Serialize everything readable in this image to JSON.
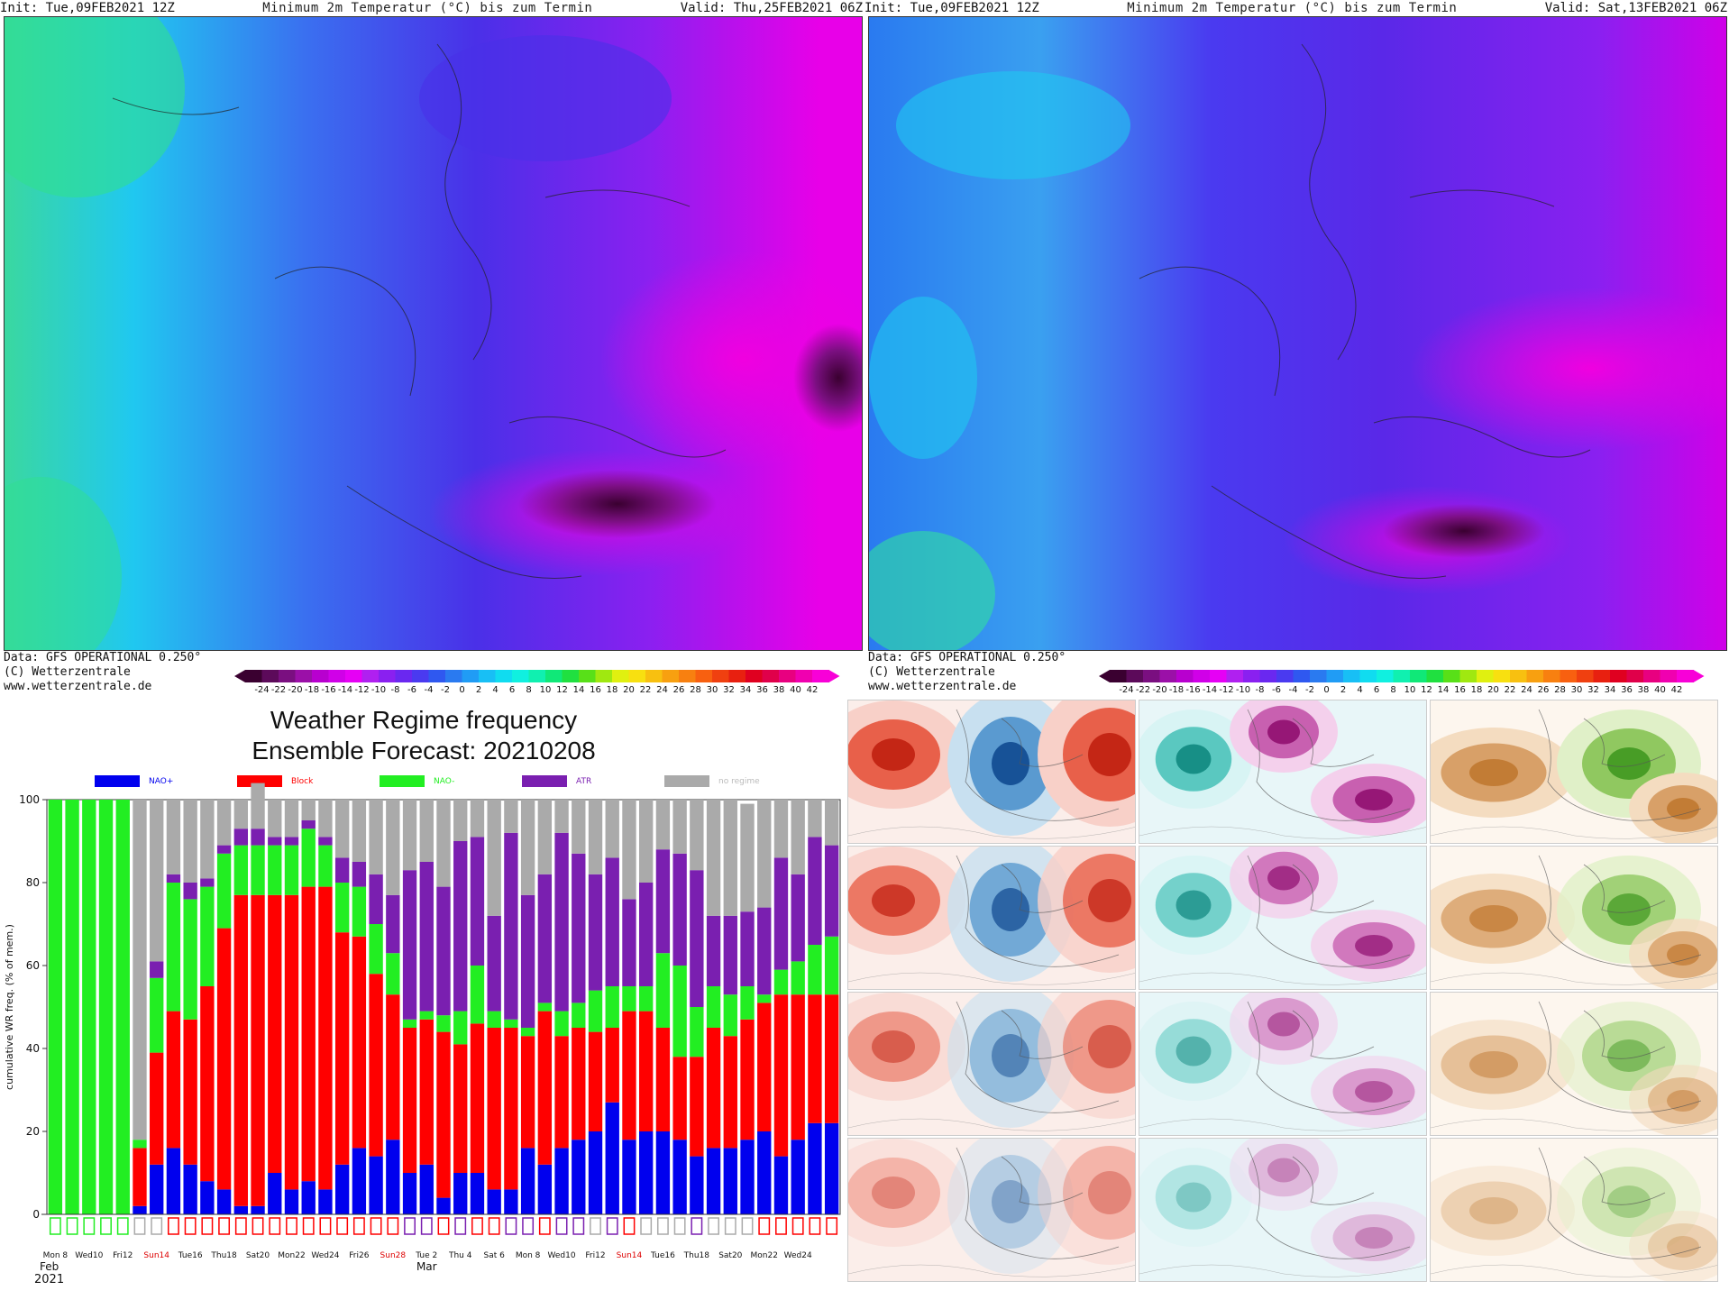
{
  "top_maps": [
    {
      "init": "Init: Tue,09FEB2021 12Z",
      "title": "Minimum 2m Temperatur (°C) bis zum Termin",
      "valid": "Valid: Thu,25FEB2021 06Z",
      "data_source": "Data: GFS OPERATIONAL 0.250°",
      "copyright": "(C) Wetterzentrale",
      "url": "www.wetterzentrale.de"
    },
    {
      "init": "Init: Tue,09FEB2021 12Z",
      "title": "Minimum 2m Temperatur (°C) bis zum Termin",
      "valid": "Valid: Sat,13FEB2021 06Z",
      "data_source": "Data: GFS OPERATIONAL 0.250°",
      "copyright": "(C) Wetterzentrale",
      "url": "www.wetterzentrale.de"
    }
  ],
  "colorbar": {
    "ticks": [
      "-24",
      "-22",
      "-20",
      "-18",
      "-16",
      "-14",
      "-12",
      "-10",
      "-8",
      "-6",
      "-4",
      "-2",
      "0",
      "2",
      "4",
      "6",
      "8",
      "10",
      "12",
      "14",
      "16",
      "18",
      "20",
      "22",
      "24",
      "26",
      "28",
      "30",
      "32",
      "34",
      "36",
      "38",
      "40",
      "42"
    ],
    "colors": [
      "#3a0030",
      "#5c0a5a",
      "#7a0f80",
      "#9b10a8",
      "#b800cf",
      "#d000e8",
      "#e600f5",
      "#b020f0",
      "#8a20f0",
      "#6a28f0",
      "#4a3af0",
      "#2f58f0",
      "#2a7af0",
      "#209cf5",
      "#18bff5",
      "#10dcf0",
      "#10f0e0",
      "#10f0b0",
      "#10e878",
      "#20e040",
      "#58e018",
      "#a0e810",
      "#e0f010",
      "#f8e010",
      "#f8c010",
      "#f8a010",
      "#f88010",
      "#f86010",
      "#f04010",
      "#e82010",
      "#e00020",
      "#e0004a",
      "#e80080",
      "#f000b0",
      "#f800d8"
    ]
  },
  "chart": {
    "title_line1": "Weather Regime frequency",
    "title_line2": "Ensemble Forecast: 20210208",
    "ylabel": "cumulative WR freq. (% of mem.)",
    "yticks": [
      "0",
      "20",
      "40",
      "60",
      "80",
      "100"
    ],
    "legend": [
      {
        "label": "NAO+",
        "color": "#0000ee"
      },
      {
        "label": "Block",
        "color": "#ff0000"
      },
      {
        "label": "NAO-",
        "color": "#22ee22"
      },
      {
        "label": "ATR",
        "color": "#7a1fb0"
      },
      {
        "label": "no regime",
        "color": "#aaaaaa"
      }
    ],
    "xlabels": [
      {
        "text": "Mon 8",
        "red": false
      },
      {
        "text": "Wed10",
        "red": false
      },
      {
        "text": "Fri12",
        "red": false
      },
      {
        "text": "Sun14",
        "red": true
      },
      {
        "text": "Tue16",
        "red": false
      },
      {
        "text": "Thu18",
        "red": false
      },
      {
        "text": "Sat20",
        "red": false
      },
      {
        "text": "Mon22",
        "red": false
      },
      {
        "text": "Wed24",
        "red": false
      },
      {
        "text": "Fri26",
        "red": false
      },
      {
        "text": "Sun28",
        "red": true
      },
      {
        "text": "Tue 2",
        "red": false
      },
      {
        "text": "Thu 4",
        "red": false
      },
      {
        "text": "Sat 6",
        "red": false
      },
      {
        "text": "Mon 8",
        "red": false
      },
      {
        "text": "Wed10",
        "red": false
      },
      {
        "text": "Fri12",
        "red": false
      },
      {
        "text": "Sun14",
        "red": true
      },
      {
        "text": "Tue16",
        "red": false
      },
      {
        "text": "Thu18",
        "red": false
      },
      {
        "text": "Sat20",
        "red": false
      },
      {
        "text": "Mon22",
        "red": false
      },
      {
        "text": "Wed24",
        "red": false
      }
    ],
    "month_labels": [
      "Feb",
      "2021",
      "Mar"
    ]
  },
  "chart_data": {
    "type": "bar",
    "stacked": true,
    "ylim": [
      0,
      100
    ],
    "series": [
      {
        "name": "NAO+",
        "values": [
          0,
          0,
          0,
          0,
          0,
          2,
          12,
          16,
          12,
          8,
          6,
          2,
          2,
          10,
          6,
          8,
          6,
          12,
          16,
          14,
          18,
          10,
          12,
          4,
          10,
          10,
          6,
          6,
          16,
          12,
          16,
          18,
          20,
          27,
          18,
          20,
          20,
          18,
          14,
          16,
          16,
          18,
          20,
          14,
          18,
          22,
          22
        ]
      },
      {
        "name": "Block",
        "values": [
          0,
          0,
          0,
          0,
          0,
          14,
          27,
          33,
          35,
          47,
          63,
          75,
          75,
          67,
          71,
          71,
          73,
          56,
          51,
          44,
          35,
          35,
          35,
          40,
          31,
          36,
          39,
          39,
          27,
          37,
          27,
          27,
          24,
          18,
          31,
          29,
          25,
          20,
          24,
          29,
          27,
          29,
          31,
          39,
          35,
          31,
          31
        ]
      },
      {
        "name": "NAO-",
        "values": [
          100,
          100,
          100,
          100,
          100,
          2,
          18,
          31,
          29,
          24,
          18,
          12,
          12,
          12,
          12,
          14,
          10,
          12,
          12,
          12,
          10,
          2,
          2,
          4,
          8,
          14,
          4,
          2,
          2,
          2,
          6,
          6,
          10,
          10,
          6,
          6,
          18,
          22,
          12,
          10,
          10,
          8,
          2,
          6,
          8,
          12,
          14
        ]
      },
      {
        "name": "ATR",
        "values": [
          0,
          0,
          0,
          0,
          0,
          0,
          4,
          2,
          4,
          2,
          2,
          4,
          4,
          2,
          2,
          2,
          2,
          6,
          6,
          12,
          14,
          36,
          36,
          31,
          41,
          31,
          23,
          45,
          32,
          31,
          43,
          36,
          28,
          31,
          21,
          25,
          25,
          27,
          33,
          17,
          19,
          18,
          21,
          27,
          21,
          26,
          22
        ]
      },
      {
        "name": "no regime",
        "values": [
          0,
          0,
          0,
          0,
          0,
          82,
          39,
          18,
          20,
          19,
          11,
          7,
          11,
          9,
          9,
          5,
          9,
          14,
          15,
          18,
          23,
          17,
          15,
          21,
          10,
          9,
          28,
          8,
          23,
          18,
          8,
          13,
          18,
          14,
          24,
          20,
          12,
          13,
          17,
          28,
          28,
          26,
          26,
          14,
          18,
          9,
          11
        ]
      }
    ]
  }
}
